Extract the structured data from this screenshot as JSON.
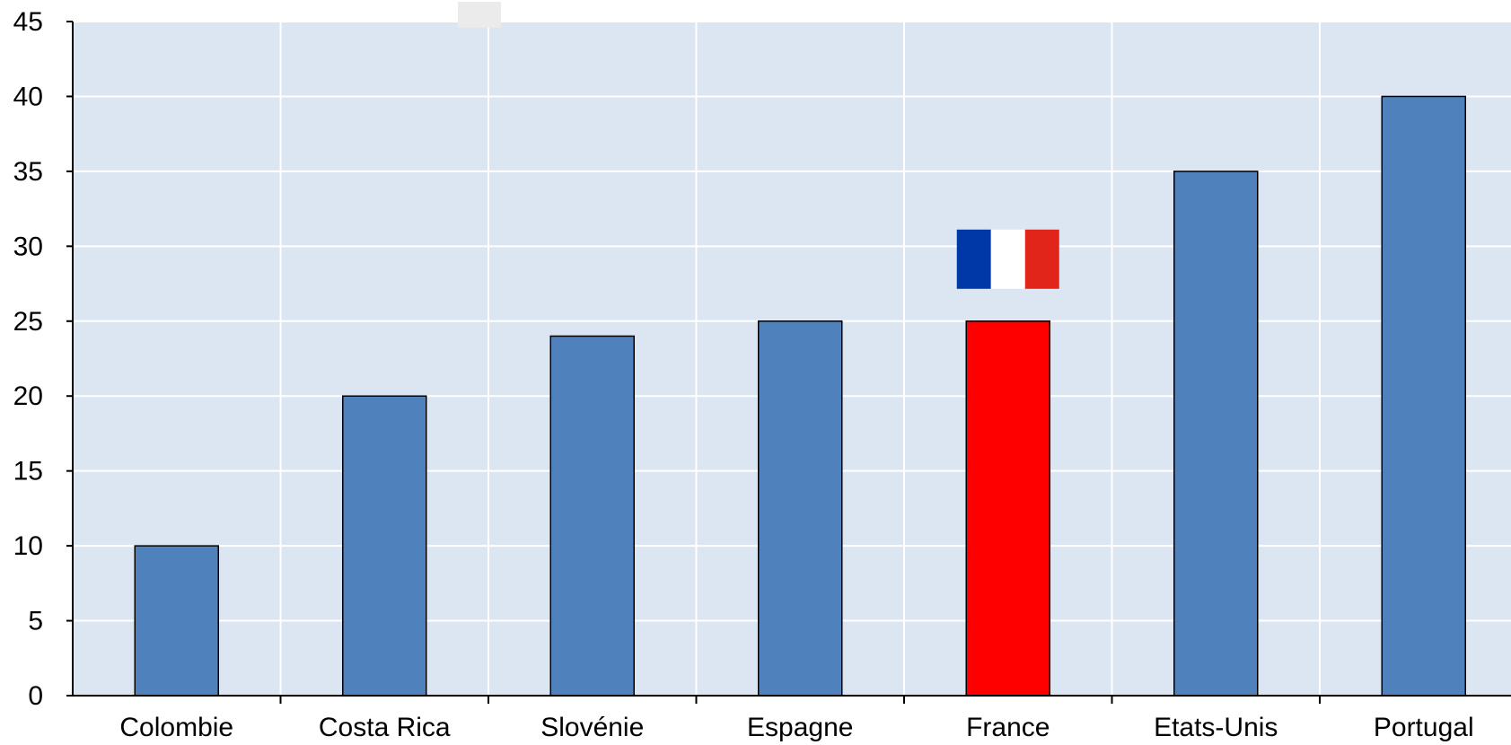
{
  "chart_data": {
    "type": "bar",
    "categories": [
      "Colombie",
      "Costa Rica",
      "Slovénie",
      "Espagne",
      "France",
      "Etats-Unis",
      "Portugal"
    ],
    "values": [
      10,
      20,
      24,
      25,
      25,
      35,
      40
    ],
    "highlight_category": "France",
    "ylim": [
      0,
      45
    ],
    "yticks": [
      "0",
      "5",
      "10",
      "15",
      "20",
      "25",
      "30",
      "35",
      "40",
      "45"
    ],
    "grid": true,
    "colors": {
      "bar": "#4f81bd",
      "highlight": "#ff0000",
      "plot_background": "#dce6f2",
      "grid": "#ffffff"
    },
    "flag": {
      "category": "France",
      "icon": "french-flag-icon",
      "colors": [
        "#0038a8",
        "#ffffff",
        "#e1251b"
      ]
    }
  }
}
